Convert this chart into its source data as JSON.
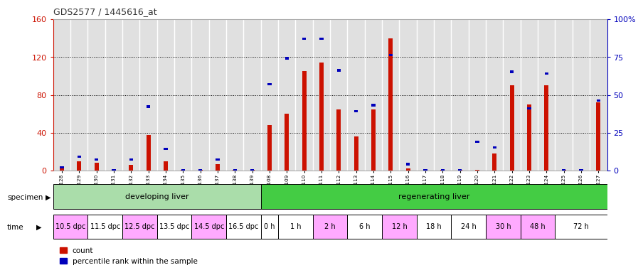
{
  "title": "GDS2577 / 1445616_at",
  "samples": [
    "GSM161128",
    "GSM161129",
    "GSM161130",
    "GSM161131",
    "GSM161132",
    "GSM161133",
    "GSM161134",
    "GSM161135",
    "GSM161136",
    "GSM161137",
    "GSM161138",
    "GSM161139",
    "GSM161108",
    "GSM161109",
    "GSM161110",
    "GSM161111",
    "GSM161112",
    "GSM161113",
    "GSM161114",
    "GSM161115",
    "GSM161116",
    "GSM161117",
    "GSM161118",
    "GSM161119",
    "GSM161120",
    "GSM161121",
    "GSM161122",
    "GSM161123",
    "GSM161124",
    "GSM161125",
    "GSM161126",
    "GSM161127"
  ],
  "count": [
    2,
    10,
    8,
    1,
    6,
    38,
    10,
    1,
    1,
    7,
    1,
    1,
    48,
    60,
    105,
    114,
    65,
    36,
    65,
    140,
    2,
    1,
    1,
    1,
    1,
    18,
    90,
    70,
    90,
    1,
    1,
    72
  ],
  "percentile": [
    3,
    10,
    8,
    1,
    8,
    43,
    15,
    1,
    1,
    8,
    1,
    1,
    58,
    75,
    88,
    88,
    67,
    40,
    44,
    77,
    5,
    1,
    1,
    1,
    20,
    16,
    66,
    42,
    65,
    1,
    1,
    47
  ],
  "ylim_left": [
    0,
    160
  ],
  "ylim_right": [
    0,
    100
  ],
  "yticks_left": [
    0,
    40,
    80,
    120,
    160
  ],
  "yticks_right": [
    0,
    25,
    50,
    75,
    100
  ],
  "bar_color_red": "#cc1100",
  "bar_color_blue": "#0000bb",
  "specimen_groups": [
    {
      "label": "developing liver",
      "start": 0,
      "end": 12,
      "color": "#aaddaa"
    },
    {
      "label": "regenerating liver",
      "start": 12,
      "end": 32,
      "color": "#44cc44"
    }
  ],
  "time_labels": [
    {
      "label": "10.5 dpc",
      "start": 0,
      "end": 2,
      "pink": true
    },
    {
      "label": "11.5 dpc",
      "start": 2,
      "end": 4,
      "pink": false
    },
    {
      "label": "12.5 dpc",
      "start": 4,
      "end": 6,
      "pink": true
    },
    {
      "label": "13.5 dpc",
      "start": 6,
      "end": 8,
      "pink": false
    },
    {
      "label": "14.5 dpc",
      "start": 8,
      "end": 10,
      "pink": true
    },
    {
      "label": "16.5 dpc",
      "start": 10,
      "end": 12,
      "pink": false
    },
    {
      "label": "0 h",
      "start": 12,
      "end": 13,
      "pink": false
    },
    {
      "label": "1 h",
      "start": 13,
      "end": 15,
      "pink": false
    },
    {
      "label": "2 h",
      "start": 15,
      "end": 17,
      "pink": true
    },
    {
      "label": "6 h",
      "start": 17,
      "end": 19,
      "pink": false
    },
    {
      "label": "12 h",
      "start": 19,
      "end": 21,
      "pink": true
    },
    {
      "label": "18 h",
      "start": 21,
      "end": 23,
      "pink": false
    },
    {
      "label": "24 h",
      "start": 23,
      "end": 25,
      "pink": false
    },
    {
      "label": "30 h",
      "start": 25,
      "end": 27,
      "pink": true
    },
    {
      "label": "48 h",
      "start": 27,
      "end": 29,
      "pink": true
    },
    {
      "label": "72 h",
      "start": 29,
      "end": 32,
      "pink": false
    }
  ],
  "pink_color": "#ffaaff",
  "white_color": "#ffffff",
  "bg_color": "#ffffff",
  "cell_bg": "#e0e0e0",
  "left_axis_color": "#cc1100",
  "right_axis_color": "#0000bb",
  "grid_color": "#000000"
}
